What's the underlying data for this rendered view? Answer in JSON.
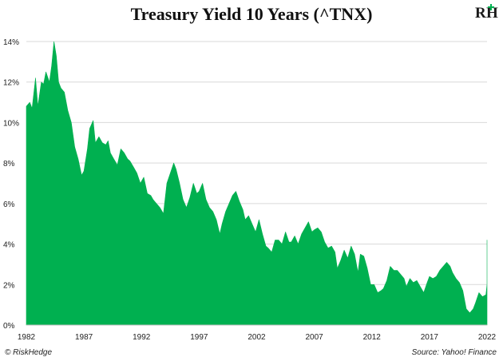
{
  "chart_data": {
    "type": "area",
    "title": "Treasury Yield 10 Years (^TNX)",
    "xlabel": "",
    "ylabel": "",
    "ylim": [
      0,
      14
    ],
    "xlim": [
      1982,
      2022
    ],
    "y_ticks": [
      "0%",
      "2%",
      "4%",
      "6%",
      "8%",
      "10%",
      "12%",
      "14%"
    ],
    "y_tick_values": [
      0,
      2,
      4,
      6,
      8,
      10,
      12,
      14
    ],
    "x_ticks": [
      "1982",
      "1987",
      "1992",
      "1997",
      "2002",
      "2007",
      "2012",
      "2017",
      "2022"
    ],
    "x_tick_values": [
      1982,
      1987,
      1992,
      1997,
      2002,
      2007,
      2012,
      2017,
      2022
    ],
    "grid": true,
    "series_color": "#00b050",
    "x": [
      1982.0,
      1982.3,
      1982.5,
      1982.8,
      1983.0,
      1983.3,
      1983.5,
      1983.7,
      1984.0,
      1984.2,
      1984.4,
      1984.6,
      1984.8,
      1985.0,
      1985.3,
      1985.6,
      1985.9,
      1986.2,
      1986.5,
      1986.8,
      1987.0,
      1987.3,
      1987.5,
      1987.8,
      1988.0,
      1988.3,
      1988.6,
      1988.9,
      1989.1,
      1989.3,
      1989.6,
      1989.9,
      1990.2,
      1990.5,
      1990.8,
      1991.0,
      1991.3,
      1991.6,
      1991.9,
      1992.2,
      1992.5,
      1992.8,
      1993.0,
      1993.3,
      1993.6,
      1993.9,
      1994.2,
      1994.5,
      1994.8,
      1995.0,
      1995.3,
      1995.6,
      1995.9,
      1996.2,
      1996.5,
      1996.8,
      1997.0,
      1997.3,
      1997.6,
      1997.9,
      1998.2,
      1998.5,
      1998.8,
      1999.0,
      1999.3,
      1999.6,
      1999.9,
      2000.2,
      2000.5,
      2000.8,
      2001.0,
      2001.3,
      2001.6,
      2001.9,
      2002.2,
      2002.5,
      2002.8,
      2003.0,
      2003.3,
      2003.6,
      2003.9,
      2004.2,
      2004.5,
      2004.8,
      2005.0,
      2005.3,
      2005.6,
      2005.9,
      2006.2,
      2006.5,
      2006.8,
      2007.0,
      2007.3,
      2007.6,
      2007.9,
      2008.2,
      2008.5,
      2008.8,
      2009.0,
      2009.3,
      2009.6,
      2009.9,
      2010.2,
      2010.5,
      2010.8,
      2011.0,
      2011.3,
      2011.6,
      2011.9,
      2012.2,
      2012.5,
      2012.8,
      2013.0,
      2013.3,
      2013.6,
      2013.9,
      2014.2,
      2014.5,
      2014.8,
      2015.0,
      2015.3,
      2015.6,
      2015.9,
      2016.2,
      2016.5,
      2016.8,
      2017.0,
      2017.3,
      2017.6,
      2017.9,
      2018.2,
      2018.5,
      2018.8,
      2019.0,
      2019.3,
      2019.6,
      2019.9,
      2020.2,
      2020.5,
      2020.8,
      2021.0,
      2021.3,
      2021.6,
      2021.9,
      2022.1,
      2022.3,
      2022.5,
      2022.7,
      2022.8
    ],
    "values": [
      10.8,
      11.0,
      10.7,
      12.2,
      10.8,
      12.0,
      11.9,
      12.5,
      12.0,
      12.8,
      14.0,
      13.3,
      12.0,
      11.7,
      11.5,
      10.6,
      10.0,
      8.8,
      8.2,
      7.4,
      7.6,
      8.7,
      9.7,
      10.1,
      9.0,
      9.3,
      9.0,
      8.9,
      9.1,
      8.5,
      8.2,
      7.9,
      8.7,
      8.5,
      8.2,
      8.1,
      7.8,
      7.5,
      7.0,
      7.3,
      6.5,
      6.4,
      6.2,
      6.0,
      5.8,
      5.5,
      7.0,
      7.5,
      8.0,
      7.7,
      7.0,
      6.2,
      5.8,
      6.3,
      7.0,
      6.5,
      6.6,
      7.0,
      6.2,
      5.8,
      5.6,
      5.2,
      4.5,
      5.0,
      5.6,
      6.0,
      6.4,
      6.6,
      6.1,
      5.7,
      5.2,
      5.4,
      5.0,
      4.6,
      5.2,
      4.5,
      3.9,
      3.8,
      3.6,
      4.2,
      4.2,
      4.0,
      4.6,
      4.1,
      4.1,
      4.4,
      4.0,
      4.5,
      4.8,
      5.1,
      4.6,
      4.7,
      4.8,
      4.6,
      4.1,
      3.8,
      3.9,
      3.6,
      2.8,
      3.2,
      3.7,
      3.3,
      3.9,
      3.5,
      2.6,
      3.5,
      3.4,
      2.8,
      2.0,
      2.0,
      1.6,
      1.7,
      1.8,
      2.2,
      2.9,
      2.7,
      2.7,
      2.5,
      2.3,
      1.9,
      2.3,
      2.1,
      2.2,
      1.9,
      1.6,
      2.1,
      2.4,
      2.3,
      2.4,
      2.7,
      2.9,
      3.1,
      2.9,
      2.6,
      2.3,
      2.1,
      1.7,
      0.8,
      0.6,
      0.8,
      1.1,
      1.6,
      1.4,
      1.5,
      2.0,
      2.9,
      3.0,
      3.3,
      4.2
    ]
  },
  "footer": {
    "copyright": "© RiskHedge",
    "source": "Source: Yahoo! Finance"
  },
  "logo": {
    "text": "RH",
    "color_primary": "#1a1a1a",
    "color_accent": "#00b050"
  }
}
